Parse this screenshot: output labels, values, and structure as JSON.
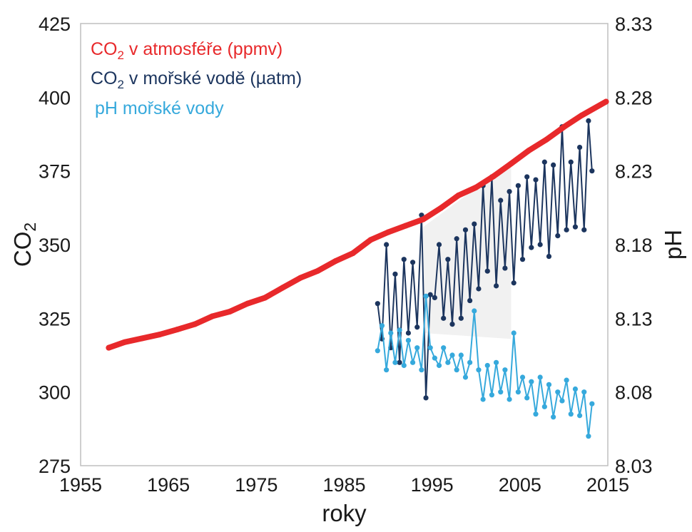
{
  "chart_data": {
    "type": "line",
    "xlabel": "roky",
    "ylabel_left": {
      "main": "CO",
      "sub": "2"
    },
    "ylabel_right": "pH",
    "xlim": [
      1955,
      2015
    ],
    "ylim_left": [
      275,
      425
    ],
    "ylim_right": [
      8.03,
      8.33
    ],
    "x_ticks": [
      "1955",
      "1965",
      "1975",
      "1985",
      "1995",
      "2005",
      "2015"
    ],
    "y_left_ticks": [
      "275",
      "300",
      "325",
      "350",
      "375",
      "400",
      "425"
    ],
    "y_right_ticks": [
      "8.03",
      "8.08",
      "8.13",
      "8.18",
      "8.23",
      "8.28",
      "8.33"
    ],
    "grid": false,
    "legend_position": "top-left",
    "legend": [
      {
        "pre": "CO",
        "sub": "2",
        "post": " v atmosféře (ppmv)",
        "color": "#e8292b"
      },
      {
        "pre": "CO",
        "sub": "2",
        "post": " v mořské vodě (µatm)",
        "color": "#1c355e"
      },
      {
        "pre": "pH mořské vody",
        "sub": "",
        "post": "",
        "color": "#36a9dc"
      }
    ],
    "series": [
      {
        "id": "co2_atmosphere",
        "axis": "left",
        "color": "#e8292b",
        "points": [
          [
            1958.2,
            315
          ],
          [
            1960,
            316.9
          ],
          [
            1962,
            318.2
          ],
          [
            1964,
            319.5
          ],
          [
            1966,
            321.2
          ],
          [
            1968,
            323
          ],
          [
            1970,
            325.7
          ],
          [
            1972,
            327.3
          ],
          [
            1974,
            330
          ],
          [
            1976,
            332
          ],
          [
            1978,
            335.4
          ],
          [
            1980,
            338.7
          ],
          [
            1982,
            341.1
          ],
          [
            1984,
            344.4
          ],
          [
            1986,
            347.1
          ],
          [
            1988,
            351.6
          ],
          [
            1990,
            354.2
          ],
          [
            1992,
            356.4
          ],
          [
            1994,
            358.6
          ],
          [
            1996,
            362.4
          ],
          [
            1998,
            366.7
          ],
          [
            2000,
            369.4
          ],
          [
            2002,
            373.2
          ],
          [
            2004,
            377.5
          ],
          [
            2006,
            381.9
          ],
          [
            2008,
            385.6
          ],
          [
            2010,
            389.9
          ],
          [
            2012,
            393.8
          ],
          [
            2014.8,
            398.5
          ]
        ]
      },
      {
        "id": "co2_seawater",
        "axis": "left",
        "color": "#1c355e",
        "points": [
          [
            1988.8,
            330
          ],
          [
            1989.3,
            318
          ],
          [
            1989.8,
            350
          ],
          [
            1990.3,
            315
          ],
          [
            1990.8,
            340
          ],
          [
            1991.3,
            310
          ],
          [
            1991.8,
            345
          ],
          [
            1992.3,
            320
          ],
          [
            1992.8,
            344
          ],
          [
            1993.3,
            322
          ],
          [
            1993.8,
            360
          ],
          [
            1994.3,
            298
          ],
          [
            1994.8,
            333
          ],
          [
            1995.3,
            332
          ],
          [
            1995.8,
            350
          ],
          [
            1996.3,
            325
          ],
          [
            1996.8,
            345
          ],
          [
            1997.3,
            323
          ],
          [
            1997.8,
            352
          ],
          [
            1998.3,
            325
          ],
          [
            1998.8,
            355
          ],
          [
            1999.3,
            331
          ],
          [
            1999.8,
            357
          ],
          [
            2000.3,
            335
          ],
          [
            2000.8,
            370
          ],
          [
            2001.3,
            341
          ],
          [
            2001.8,
            373
          ],
          [
            2002.3,
            336
          ],
          [
            2002.8,
            365
          ],
          [
            2003.3,
            342
          ],
          [
            2003.8,
            368
          ],
          [
            2004.3,
            337
          ],
          [
            2004.8,
            370
          ],
          [
            2005.3,
            345
          ],
          [
            2005.8,
            373
          ],
          [
            2006.3,
            349
          ],
          [
            2006.8,
            372
          ],
          [
            2007.3,
            350
          ],
          [
            2007.8,
            378
          ],
          [
            2008.3,
            346
          ],
          [
            2008.8,
            377
          ],
          [
            2009.3,
            353
          ],
          [
            2009.8,
            390
          ],
          [
            2010.3,
            355
          ],
          [
            2010.8,
            378
          ],
          [
            2011.3,
            356
          ],
          [
            2011.8,
            383
          ],
          [
            2012.3,
            355
          ],
          [
            2012.8,
            392
          ],
          [
            2013.2,
            375
          ]
        ]
      },
      {
        "id": "ph_seawater",
        "axis": "right",
        "color": "#36a9dc",
        "points": [
          [
            1988.8,
            8.108
          ],
          [
            1989.3,
            8.125
          ],
          [
            1989.8,
            8.095
          ],
          [
            1990.3,
            8.12
          ],
          [
            1990.8,
            8.1
          ],
          [
            1991.3,
            8.122
          ],
          [
            1991.8,
            8.098
          ],
          [
            1992.3,
            8.115
          ],
          [
            1992.8,
            8.1
          ],
          [
            1993.3,
            8.11
          ],
          [
            1993.8,
            8.095
          ],
          [
            1994.3,
            8.145
          ],
          [
            1994.8,
            8.11
          ],
          [
            1995.3,
            8.103
          ],
          [
            1995.8,
            8.098
          ],
          [
            1996.3,
            8.11
          ],
          [
            1996.8,
            8.1
          ],
          [
            1997.3,
            8.105
          ],
          [
            1997.8,
            8.095
          ],
          [
            1998.3,
            8.105
          ],
          [
            1998.8,
            8.09
          ],
          [
            1999.3,
            8.1
          ],
          [
            1999.8,
            8.135
          ],
          [
            2000.3,
            8.095
          ],
          [
            2000.8,
            8.075
          ],
          [
            2001.3,
            8.098
          ],
          [
            2001.8,
            8.078
          ],
          [
            2002.3,
            8.1
          ],
          [
            2002.8,
            8.08
          ],
          [
            2003.3,
            8.095
          ],
          [
            2003.8,
            8.075
          ],
          [
            2004.3,
            8.12
          ],
          [
            2004.8,
            8.08
          ],
          [
            2005.3,
            8.09
          ],
          [
            2005.8,
            8.076
          ],
          [
            2006.3,
            8.087
          ],
          [
            2006.8,
            8.065
          ],
          [
            2007.3,
            8.09
          ],
          [
            2007.8,
            8.07
          ],
          [
            2008.3,
            8.085
          ],
          [
            2008.8,
            8.063
          ],
          [
            2009.3,
            8.08
          ],
          [
            2009.8,
            8.074
          ],
          [
            2010.3,
            8.088
          ],
          [
            2010.8,
            8.065
          ],
          [
            2011.3,
            8.082
          ],
          [
            2011.8,
            8.064
          ],
          [
            2012.3,
            8.08
          ],
          [
            2012.8,
            8.05
          ],
          [
            2013.2,
            8.072
          ]
        ]
      }
    ]
  }
}
